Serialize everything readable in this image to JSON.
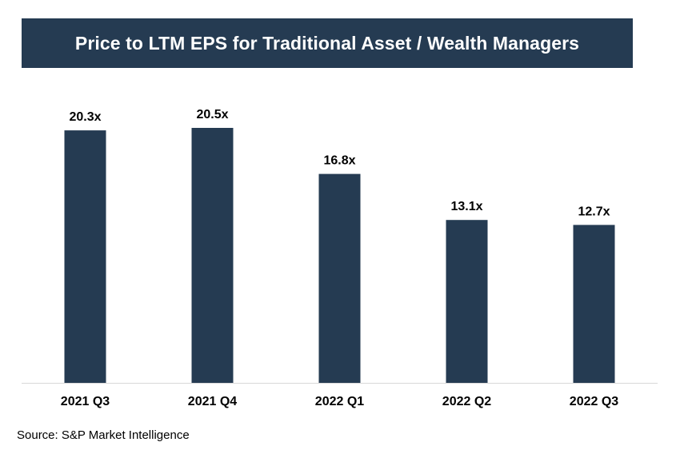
{
  "title": "Price to LTM EPS for Traditional Asset / Wealth Managers",
  "source": "Source: S&P Market Intelligence",
  "colors": {
    "banner": "#253b52",
    "bar": "#253b52",
    "axis": "#d9d9d9"
  },
  "chart_data": {
    "type": "bar",
    "categories": [
      "2021 Q3",
      "2021 Q4",
      "2022 Q1",
      "2022 Q2",
      "2022 Q3"
    ],
    "values": [
      20.3,
      20.5,
      16.8,
      13.1,
      12.7
    ],
    "value_labels": [
      "20.3x",
      "20.5x",
      "16.8x",
      "13.1x",
      "12.7x"
    ],
    "ylim": [
      0,
      20.5
    ],
    "grid": false,
    "legend": "none"
  }
}
